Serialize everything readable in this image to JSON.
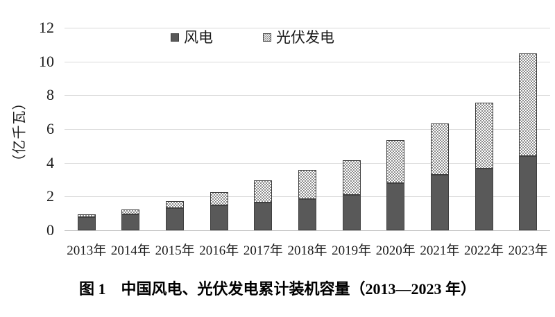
{
  "figure": {
    "caption": "图 1　中国风电、光伏发电累计装机容量（2013—2023 年）"
  },
  "legend": {
    "wind_label": "风电",
    "solar_label": "光伏发电"
  },
  "axis": {
    "y_title": "（亿千瓦）"
  },
  "colors": {
    "wind_fill": "#595959",
    "bar_border": "#3f3f3f",
    "pattern_dot": "#8c8c8c",
    "gridline": "#d9d9d9",
    "axis_line": "#bfbfbf"
  },
  "chart_data": {
    "type": "bar",
    "stacked": true,
    "title": "图 1　中国风电、光伏发电累计装机容量（2013—2023 年）",
    "xlabel": "",
    "ylabel": "（亿千瓦）",
    "categories": [
      "2013年",
      "2014年",
      "2015年",
      "2016年",
      "2017年",
      "2018年",
      "2019年",
      "2020年",
      "2021年",
      "2022年",
      "2023年"
    ],
    "series": [
      {
        "name": "风电",
        "style": "solid-dark-gray",
        "values": [
          0.77,
          0.96,
          1.31,
          1.49,
          1.64,
          1.84,
          2.1,
          2.81,
          3.28,
          3.65,
          4.41
        ]
      },
      {
        "name": "光伏发电",
        "style": "dotted-pattern",
        "values": [
          0.19,
          0.28,
          0.43,
          0.77,
          1.3,
          1.74,
          2.04,
          2.53,
          3.06,
          3.93,
          6.09
        ]
      }
    ],
    "totals": [
      0.96,
      1.24,
      1.74,
      2.26,
      2.94,
      3.58,
      4.14,
      5.34,
      6.34,
      7.58,
      10.5
    ],
    "ylim": [
      0,
      12
    ],
    "yticks": [
      0,
      2,
      4,
      6,
      8,
      10,
      12
    ],
    "grid": true,
    "legend_position": "top-center"
  }
}
